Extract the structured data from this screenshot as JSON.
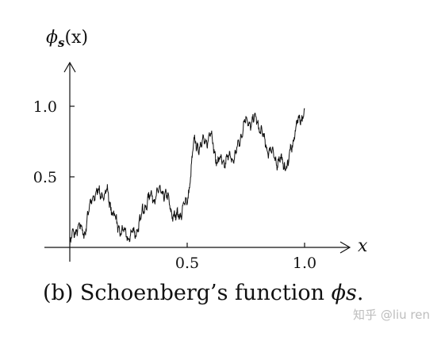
{
  "chart_data": {
    "type": "line",
    "title": "",
    "ylabel": "ϕs(x)",
    "xlabel": "x",
    "xlim": [
      0,
      1.15
    ],
    "ylim": [
      -0.05,
      1.25
    ],
    "xticks": [
      0.5,
      1.0
    ],
    "xtick_labels": [
      "0.5",
      "1.0"
    ],
    "yticks": [
      0.5,
      1.0
    ],
    "ytick_labels": [
      "0.5",
      "1.0"
    ],
    "grid": false,
    "series": [
      {
        "x": [
          0.0,
          0.03,
          0.06,
          0.1,
          0.16,
          0.2,
          0.24,
          0.28,
          0.33,
          0.4,
          0.45,
          0.5,
          0.53,
          0.56,
          0.6,
          0.63,
          0.67,
          0.71,
          0.74,
          0.8,
          0.83,
          0.88,
          0.93,
          0.96,
          1.0
        ],
        "values": [
          0.02,
          0.15,
          0.1,
          0.38,
          0.38,
          0.16,
          0.08,
          0.1,
          0.34,
          0.4,
          0.2,
          0.32,
          0.74,
          0.72,
          0.8,
          0.6,
          0.62,
          0.66,
          0.88,
          0.9,
          0.74,
          0.62,
          0.58,
          0.84,
          0.97
        ]
      }
    ]
  },
  "caption": {
    "prefix": "(b) Schoenberg’s function ",
    "symbol": "ϕs",
    "suffix": "."
  },
  "watermark": "知乎 @liu ren"
}
